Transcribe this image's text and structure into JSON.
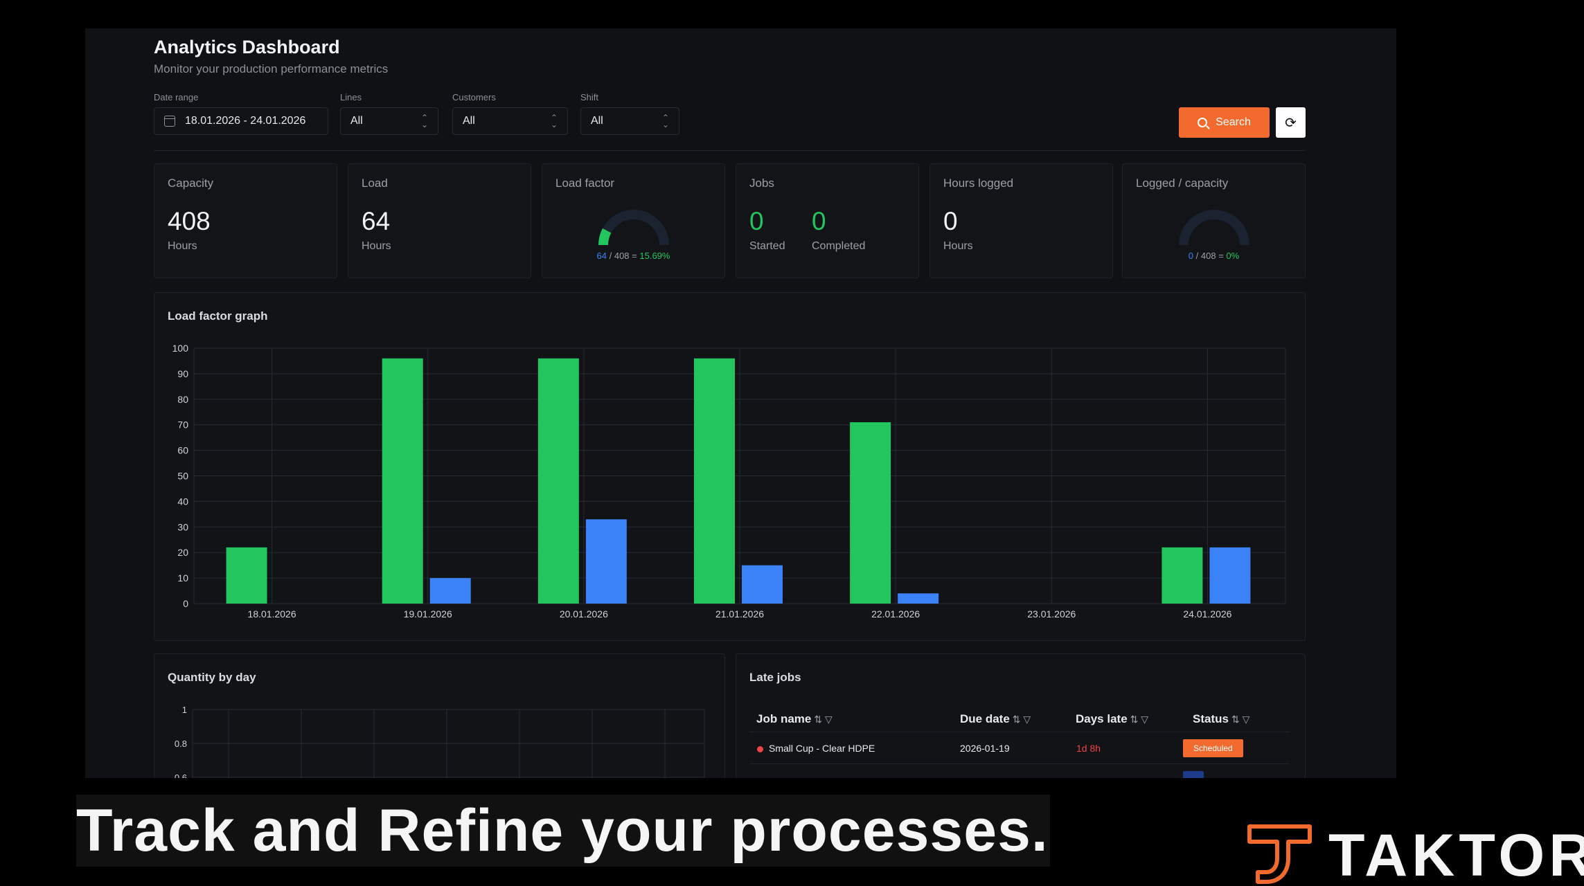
{
  "header": {
    "title": "Analytics Dashboard",
    "subtitle": "Monitor your production performance metrics"
  },
  "filters": {
    "date_range": {
      "label": "Date range",
      "value": "18.01.2026 - 24.01.2026"
    },
    "lines": {
      "label": "Lines",
      "value": "All"
    },
    "customers": {
      "label": "Customers",
      "value": "All"
    },
    "shift": {
      "label": "Shift",
      "value": "All"
    },
    "search_label": "Search"
  },
  "kpis": {
    "capacity": {
      "title": "Capacity",
      "value": "408",
      "unit": "Hours"
    },
    "load": {
      "title": "Load",
      "value": "64",
      "unit": "Hours"
    },
    "load_factor": {
      "title": "Load factor",
      "num": "64",
      "den": "408",
      "pct": "15.69%",
      "fraction": 0.1569
    },
    "jobs": {
      "title": "Jobs",
      "started_value": "0",
      "started_label": "Started",
      "completed_value": "0",
      "completed_label": "Completed"
    },
    "hours_logged": {
      "title": "Hours logged",
      "value": "0",
      "unit": "Hours"
    },
    "logged_capacity": {
      "title": "Logged / capacity",
      "num": "0",
      "den": "408",
      "pct": "0%",
      "fraction": 0
    }
  },
  "load_factor_panel": {
    "title": "Load factor graph"
  },
  "quantity_panel": {
    "title": "Quantity by day"
  },
  "late_jobs": {
    "title": "Late jobs",
    "columns": [
      "Job name",
      "Due date",
      "Days late",
      "Status"
    ],
    "rows": [
      {
        "job": "Small Cup - Clear HDPE",
        "due": "2026-01-19",
        "late": "1d 8h",
        "status": "Scheduled"
      }
    ]
  },
  "colors": {
    "accent": "#f26a2e",
    "green": "#22c55e",
    "blue": "#3b82f6"
  },
  "chart_data": [
    {
      "type": "bar",
      "title": "Load factor graph",
      "categories": [
        "18.01.2026",
        "19.01.2026",
        "20.01.2026",
        "21.01.2026",
        "22.01.2026",
        "23.01.2026",
        "24.01.2026"
      ],
      "series": [
        {
          "values": [
            22,
            96,
            96,
            96,
            71,
            0,
            22
          ],
          "color": "#22c55e"
        },
        {
          "values": [
            0,
            10,
            33,
            15,
            4,
            0,
            22
          ],
          "color": "#3b82f6"
        }
      ],
      "ylim": [
        0,
        100
      ],
      "yticks": [
        0,
        10,
        20,
        30,
        40,
        50,
        60,
        70,
        80,
        90,
        100
      ],
      "grid": true
    },
    {
      "type": "line",
      "title": "Quantity by day",
      "ylim": [
        0,
        1
      ],
      "yticks": [
        "1",
        "0.8",
        "0.6"
      ],
      "grid": true
    }
  ],
  "footer": {
    "caption": "Track and Refine your processes.",
    "brand": "TAKTORA"
  }
}
